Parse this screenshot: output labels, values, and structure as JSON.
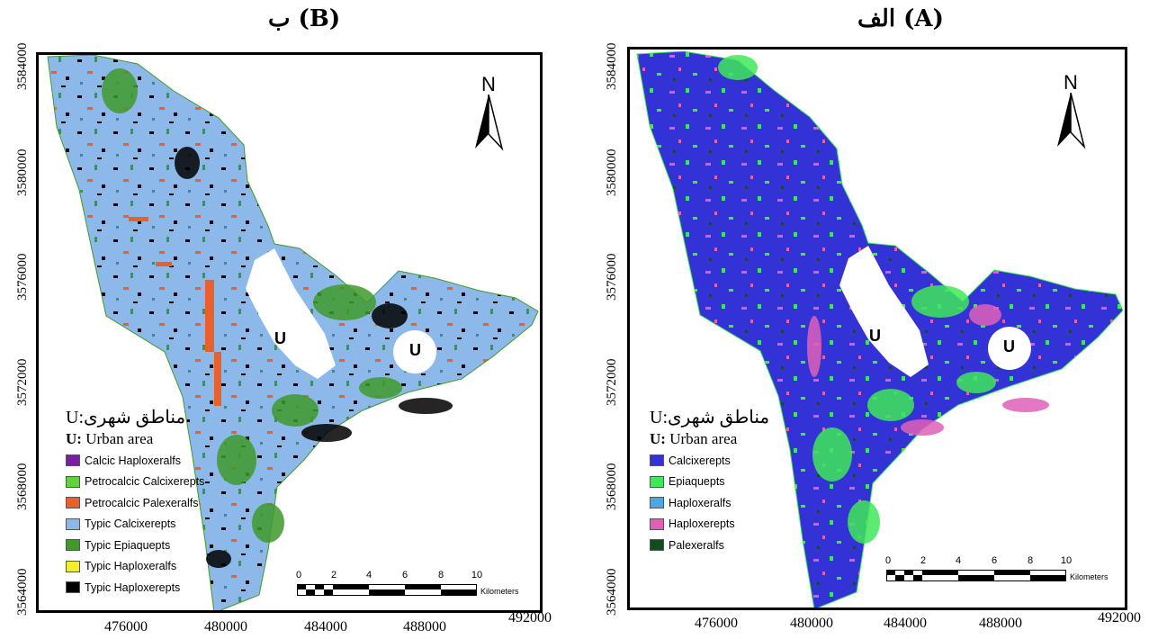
{
  "panels": {
    "b": {
      "title": "ب (B)",
      "y_ticks": [
        "3584000",
        "3580000",
        "3576000",
        "3572000",
        "3568000",
        "3564000"
      ],
      "x_ticks": [
        "476000",
        "480000",
        "484000",
        "488000",
        "492000"
      ],
      "north_label": "N",
      "urban_labels": [
        "U",
        "U"
      ],
      "legend": {
        "persian_note": "مناطق شهری:U",
        "urban_key": "U:",
        "urban_text": "Urban area",
        "items": [
          {
            "label": "Calcic Haploxeralfs",
            "color": "#7b1fa2"
          },
          {
            "label": "Petrocalcic Calcixerepts",
            "color": "#5dd43a"
          },
          {
            "label": "Petrocalcic Palexeralfs",
            "color": "#e8612a"
          },
          {
            "label": "Typic Calcixerepts",
            "color": "#8db8ea"
          },
          {
            "label": "Typic Epiaquepts",
            "color": "#3f9a2c"
          },
          {
            "label": "Typic Haploxeralfs",
            "color": "#f2ee2a"
          },
          {
            "label": "Typic Haploxerepts",
            "color": "#000000"
          }
        ]
      },
      "scale": {
        "ticks": [
          "0",
          "2",
          "4",
          "6",
          "8",
          "10"
        ],
        "unit": "Kilometers"
      }
    },
    "a": {
      "title": "الف (A)",
      "y_ticks": [
        "3584000",
        "3580000",
        "3576000",
        "3572000",
        "3568000",
        "3564000"
      ],
      "x_ticks": [
        "476000",
        "480000",
        "484000",
        "488000",
        "492000"
      ],
      "north_label": "N",
      "urban_labels": [
        "U",
        "U"
      ],
      "legend": {
        "persian_note": "مناطق شهری:U",
        "urban_key": "U:",
        "urban_text": "Urban area",
        "items": [
          {
            "label": "Calcixerepts",
            "color": "#3232d6"
          },
          {
            "label": "Epiaquepts",
            "color": "#3fe85a"
          },
          {
            "label": "Haploxeralfs",
            "color": "#4aa8e6"
          },
          {
            "label": "Haploxerepts",
            "color": "#e060b8"
          },
          {
            "label": "Palexeralfs",
            "color": "#124d1f"
          }
        ]
      },
      "scale": {
        "ticks": [
          "0",
          "2",
          "4",
          "6",
          "8",
          "10"
        ],
        "unit": "Kilometers"
      }
    }
  }
}
